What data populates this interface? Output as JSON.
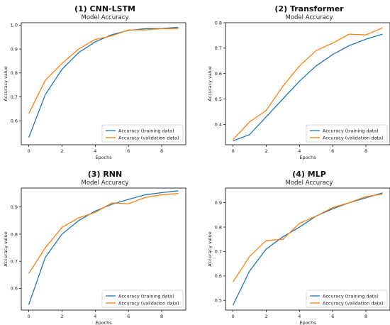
{
  "chart_data": [
    {
      "type": "line",
      "heading": "(1) CNN-LSTM",
      "title": "Model Accuracy",
      "xlabel": "Epochs",
      "ylabel": "Accuracy value",
      "xlim": [
        -0.45,
        9.45
      ],
      "ylim": [
        0.5,
        1.01
      ],
      "xticks": [
        0,
        2,
        4,
        6,
        8
      ],
      "yticks": [
        0.6,
        0.7,
        0.8,
        0.9,
        1.0
      ],
      "ytick_labels": [
        "0.6",
        "0.7",
        "0.8",
        "0.9",
        "1.0"
      ],
      "grid": false,
      "legend": "lower-right",
      "x": [
        0,
        1,
        2,
        3,
        4,
        5,
        6,
        7,
        8,
        9
      ],
      "series": [
        {
          "name": "Accuracy (training data)",
          "color": "#1f77b4",
          "values": [
            0.53,
            0.71,
            0.815,
            0.885,
            0.93,
            0.96,
            0.978,
            0.985,
            0.986,
            0.991
          ]
        },
        {
          "name": "Accuracy (validation data)",
          "color": "#ff7f0e",
          "values": [
            0.63,
            0.77,
            0.84,
            0.9,
            0.94,
            0.955,
            0.98,
            0.98,
            0.985,
            0.985
          ]
        }
      ]
    },
    {
      "type": "line",
      "heading": "(2) Transformer",
      "title": "Model Accuracy",
      "xlabel": "Epochs",
      "ylabel": "Accuracy value",
      "xlim": [
        -0.45,
        9.45
      ],
      "ylim": [
        0.32,
        0.8
      ],
      "xticks": [
        0,
        2,
        4,
        6,
        8
      ],
      "yticks": [
        0.4,
        0.5,
        0.6,
        0.7,
        0.8
      ],
      "ytick_labels": [
        "0.4",
        "0.5",
        "0.6",
        "0.7",
        "0.8"
      ],
      "grid": false,
      "legend": "lower-right",
      "x": [
        0,
        1,
        2,
        3,
        4,
        5,
        6,
        7,
        8,
        9
      ],
      "series": [
        {
          "name": "Accuracy (training data)",
          "color": "#1f77b4",
          "values": [
            0.335,
            0.36,
            0.43,
            0.5,
            0.57,
            0.63,
            0.675,
            0.71,
            0.735,
            0.755
          ]
        },
        {
          "name": "Accuracy (validation data)",
          "color": "#ff7f0e",
          "values": [
            0.34,
            0.41,
            0.455,
            0.55,
            0.63,
            0.69,
            0.72,
            0.755,
            0.752,
            0.78
          ]
        }
      ]
    },
    {
      "type": "line",
      "heading": "(3) RNN",
      "title": "Model Accuracy",
      "xlabel": "Epochs",
      "ylabel": "Accuracy value",
      "xlim": [
        -0.45,
        9.45
      ],
      "ylim": [
        0.52,
        0.97
      ],
      "xticks": [
        0,
        2,
        4,
        6,
        8
      ],
      "yticks": [
        0.6,
        0.7,
        0.8,
        0.9
      ],
      "ytick_labels": [
        "0.6",
        "0.7",
        "0.8",
        "0.9"
      ],
      "grid": false,
      "legend": "lower-right",
      "x": [
        0,
        1,
        2,
        3,
        4,
        5,
        6,
        7,
        8,
        9
      ],
      "series": [
        {
          "name": "Accuracy (training data)",
          "color": "#1f77b4",
          "values": [
            0.54,
            0.715,
            0.8,
            0.85,
            0.885,
            0.91,
            0.928,
            0.945,
            0.953,
            0.96
          ]
        },
        {
          "name": "Accuracy (validation data)",
          "color": "#ff7f0e",
          "values": [
            0.655,
            0.75,
            0.825,
            0.86,
            0.88,
            0.915,
            0.912,
            0.935,
            0.945,
            0.95
          ]
        }
      ]
    },
    {
      "type": "line",
      "heading": "(4) MLP",
      "title": "Model Accuracy",
      "xlabel": "Epochs",
      "ylabel": "Accuracy value",
      "xlim": [
        -0.45,
        9.45
      ],
      "ylim": [
        0.46,
        0.96
      ],
      "xticks": [
        0,
        2,
        4,
        6,
        8
      ],
      "yticks": [
        0.5,
        0.6,
        0.7,
        0.8,
        0.9
      ],
      "ytick_labels": [
        "0.5",
        "0.6",
        "0.7",
        "0.8",
        "0.9"
      ],
      "grid": false,
      "legend": "lower-right",
      "x": [
        0,
        1,
        2,
        3,
        4,
        5,
        6,
        7,
        8,
        9
      ],
      "series": [
        {
          "name": "Accuracy (training data)",
          "color": "#1f77b4",
          "values": [
            0.48,
            0.62,
            0.71,
            0.76,
            0.8,
            0.845,
            0.875,
            0.9,
            0.92,
            0.94
          ]
        },
        {
          "name": "Accuracy (validation data)",
          "color": "#ff7f0e",
          "values": [
            0.575,
            0.68,
            0.745,
            0.75,
            0.815,
            0.845,
            0.88,
            0.9,
            0.925,
            0.935
          ]
        }
      ]
    }
  ]
}
